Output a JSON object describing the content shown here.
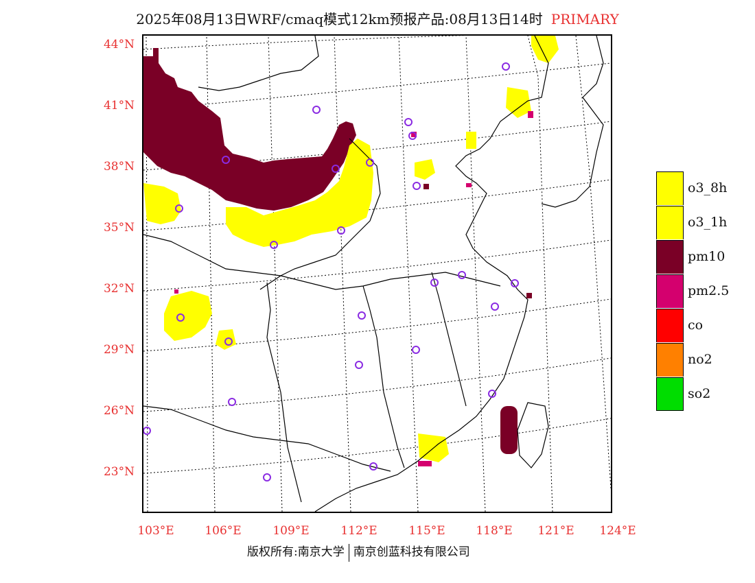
{
  "title": {
    "main": "2025年08月13日WRF/cmaq模式12km预报产品:08月13日14时",
    "tag": "PRIMARY"
  },
  "lat_labels": [
    "44°N",
    "41°N",
    "38°N",
    "35°N",
    "32°N",
    "29°N",
    "26°N",
    "23°N"
  ],
  "lon_labels": [
    "103°E",
    "106°E",
    "109°E",
    "112°E",
    "115°E",
    "118°E",
    "121°E",
    "124°E"
  ],
  "legend": [
    {
      "label": "o3_8h",
      "color": "#ffff00"
    },
    {
      "label": "o3_1h",
      "color": "#ffff00"
    },
    {
      "label": "pm10",
      "color": "#7a0026"
    },
    {
      "label": "pm2.5",
      "color": "#d4006e"
    },
    {
      "label": "co",
      "color": "#ff0000"
    },
    {
      "label": "no2",
      "color": "#ff8000"
    },
    {
      "label": "so2",
      "color": "#00dd00"
    }
  ],
  "footer": {
    "left": "版权所有:南京大学",
    "right": "南京创蓝科技有限公司"
  },
  "colors": {
    "label_red": "#e83030",
    "station_marker": "#8a2be2",
    "boundary": "#000000"
  }
}
